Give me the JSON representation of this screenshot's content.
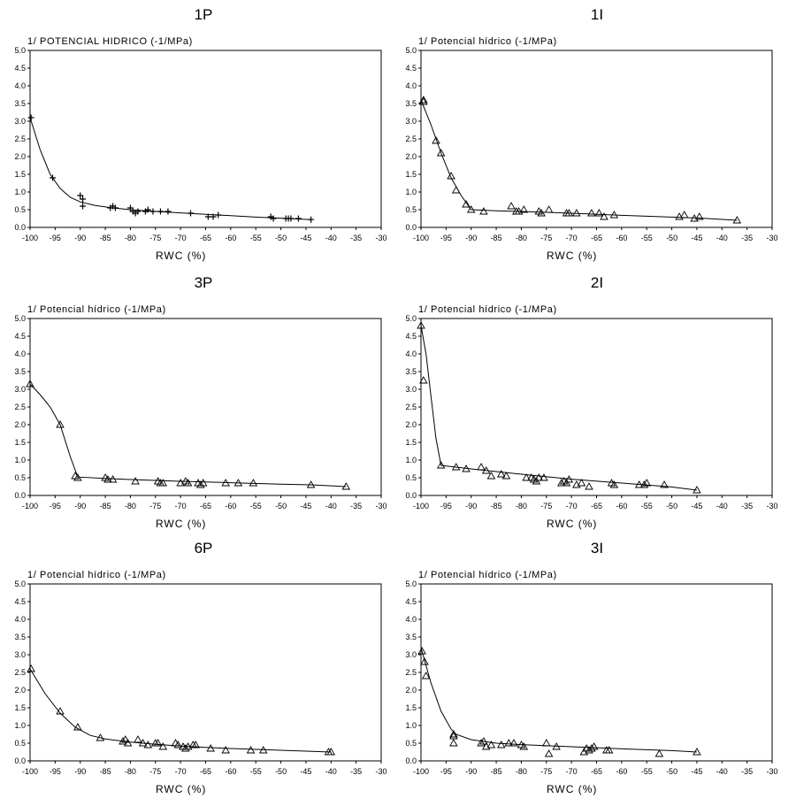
{
  "figure": {
    "marker_color": "#000000",
    "frame_color": "#000000"
  },
  "chart_data": [
    {
      "type": "scatter",
      "title": "1P",
      "ylabel": "1/ POTENCIAL HIDRICO (-1/MPa)",
      "xlabel": "RWC (%)",
      "xlim": [
        -100,
        -30
      ],
      "ylim": [
        0,
        5
      ],
      "xticks": [
        "-100",
        "-95",
        "-90",
        "-85",
        "-80",
        "-75",
        "-70",
        "-65",
        "-60",
        "-55",
        "-50",
        "-45",
        "-40",
        "-35",
        "-30"
      ],
      "yticks": [
        "0.0",
        "0.5",
        "1.0",
        "1.5",
        "2.0",
        "2.5",
        "3.0",
        "3.5",
        "4.0",
        "4.5",
        "5.0"
      ],
      "marker": "plus",
      "grid": false,
      "points": [
        [
          -99.8,
          3.1
        ],
        [
          -95.5,
          1.4
        ],
        [
          -90,
          0.9
        ],
        [
          -89.5,
          0.8
        ],
        [
          -89.5,
          0.6
        ],
        [
          -84,
          0.55
        ],
        [
          -83.5,
          0.6
        ],
        [
          -83,
          0.55
        ],
        [
          -80,
          0.55
        ],
        [
          -79.5,
          0.45
        ],
        [
          -79,
          0.4
        ],
        [
          -78.5,
          0.45
        ],
        [
          -77,
          0.45
        ],
        [
          -76.5,
          0.5
        ],
        [
          -75.5,
          0.45
        ],
        [
          -74,
          0.45
        ],
        [
          -72.5,
          0.45
        ],
        [
          -68,
          0.4
        ],
        [
          -64.5,
          0.3
        ],
        [
          -63.5,
          0.3
        ],
        [
          -62.5,
          0.35
        ],
        [
          -52,
          0.3
        ],
        [
          -51.5,
          0.25
        ],
        [
          -49,
          0.25
        ],
        [
          -48.5,
          0.25
        ],
        [
          -48,
          0.25
        ],
        [
          -46.5,
          0.25
        ],
        [
          -44,
          0.22
        ]
      ],
      "curve": [
        [
          -100,
          3.1
        ],
        [
          -98,
          2.2
        ],
        [
          -96,
          1.5
        ],
        [
          -94,
          1.1
        ],
        [
          -92,
          0.85
        ],
        [
          -90,
          0.72
        ],
        [
          -87,
          0.62
        ],
        [
          -84,
          0.56
        ],
        [
          -80,
          0.5
        ],
        [
          -75,
          0.45
        ],
        [
          -70,
          0.41
        ],
        [
          -65,
          0.37
        ],
        [
          -60,
          0.33
        ],
        [
          -55,
          0.29
        ],
        [
          -50,
          0.26
        ],
        [
          -44,
          0.22
        ]
      ]
    },
    {
      "type": "scatter",
      "title": "1I",
      "ylabel": "1/ Potencial hídrico (-1/MPa)",
      "xlabel": "RWC (%)",
      "xlim": [
        -100,
        -30
      ],
      "ylim": [
        0,
        5
      ],
      "xticks": [
        "-100",
        "-95",
        "-90",
        "-85",
        "-80",
        "-75",
        "-70",
        "-65",
        "-60",
        "-55",
        "-50",
        "-45",
        "-40",
        "-35",
        "-30"
      ],
      "yticks": [
        "0.0",
        "0.5",
        "1.0",
        "1.5",
        "2.0",
        "2.5",
        "3.0",
        "3.5",
        "4.0",
        "4.5",
        "5.0"
      ],
      "marker": "triangle",
      "grid": false,
      "points": [
        [
          -99.5,
          3.6
        ],
        [
          -99.5,
          3.55
        ],
        [
          -97,
          2.45
        ],
        [
          -96,
          2.1
        ],
        [
          -94,
          1.45
        ],
        [
          -93,
          1.05
        ],
        [
          -91,
          0.65
        ],
        [
          -90,
          0.5
        ],
        [
          -87.5,
          0.45
        ],
        [
          -82,
          0.6
        ],
        [
          -81,
          0.45
        ],
        [
          -80.5,
          0.45
        ],
        [
          -79.5,
          0.5
        ],
        [
          -76.5,
          0.45
        ],
        [
          -76,
          0.4
        ],
        [
          -74.5,
          0.5
        ],
        [
          -71,
          0.4
        ],
        [
          -70.5,
          0.4
        ],
        [
          -69,
          0.4
        ],
        [
          -66,
          0.4
        ],
        [
          -64.5,
          0.4
        ],
        [
          -63.5,
          0.3
        ],
        [
          -61.5,
          0.35
        ],
        [
          -48.5,
          0.3
        ],
        [
          -47.5,
          0.35
        ],
        [
          -45.5,
          0.25
        ],
        [
          -44.5,
          0.3
        ],
        [
          -37,
          0.2
        ]
      ],
      "curve": [
        [
          -100,
          3.6
        ],
        [
          -98,
          2.9
        ],
        [
          -96,
          2.1
        ],
        [
          -94,
          1.4
        ],
        [
          -92,
          0.9
        ],
        [
          -90,
          0.5
        ],
        [
          -85,
          0.47
        ],
        [
          -80,
          0.45
        ],
        [
          -70,
          0.4
        ],
        [
          -60,
          0.34
        ],
        [
          -50,
          0.29
        ],
        [
          -44,
          0.26
        ],
        [
          -37,
          0.2
        ]
      ]
    },
    {
      "type": "scatter",
      "title": "3P",
      "ylabel": "1/ Potencial hídrico (-1/MPa)",
      "xlabel": "RWC (%)",
      "xlim": [
        -100,
        -30
      ],
      "ylim": [
        0,
        5
      ],
      "xticks": [
        "-100",
        "-95",
        "-90",
        "-85",
        "-80",
        "-75",
        "-70",
        "-65",
        "-60",
        "-55",
        "-50",
        "-45",
        "-40",
        "-35",
        "-30"
      ],
      "yticks": [
        "0.0",
        "0.5",
        "1.0",
        "1.5",
        "2.0",
        "2.5",
        "3.0",
        "3.5",
        "4.0",
        "4.5",
        "5.0"
      ],
      "marker": "triangle",
      "grid": false,
      "points": [
        [
          -100,
          3.15
        ],
        [
          -94,
          2.0
        ],
        [
          -91,
          0.55
        ],
        [
          -90.5,
          0.5
        ],
        [
          -85,
          0.5
        ],
        [
          -84.5,
          0.45
        ],
        [
          -83.5,
          0.45
        ],
        [
          -79,
          0.4
        ],
        [
          -74.5,
          0.4
        ],
        [
          -74,
          0.35
        ],
        [
          -73.5,
          0.35
        ],
        [
          -70,
          0.35
        ],
        [
          -69,
          0.4
        ],
        [
          -68.5,
          0.35
        ],
        [
          -66.5,
          0.35
        ],
        [
          -66,
          0.3
        ],
        [
          -65.5,
          0.35
        ],
        [
          -61,
          0.35
        ],
        [
          -58.5,
          0.35
        ],
        [
          -55.5,
          0.35
        ],
        [
          -44,
          0.3
        ],
        [
          -37,
          0.25
        ]
      ],
      "curve": [
        [
          -100,
          3.15
        ],
        [
          -98,
          2.85
        ],
        [
          -96,
          2.5
        ],
        [
          -94,
          2.0
        ],
        [
          -92,
          1.1
        ],
        [
          -90.5,
          0.52
        ],
        [
          -85,
          0.48
        ],
        [
          -80,
          0.45
        ],
        [
          -70,
          0.4
        ],
        [
          -60,
          0.36
        ],
        [
          -50,
          0.32
        ],
        [
          -44,
          0.3
        ],
        [
          -37,
          0.25
        ]
      ]
    },
    {
      "type": "scatter",
      "title": "2I",
      "ylabel": "1/ Potencial hídrico (-1/MPa)",
      "xlabel": "RWC (%)",
      "xlim": [
        -100,
        -30
      ],
      "ylim": [
        0,
        5
      ],
      "xticks": [
        "-100",
        "-95",
        "-90",
        "-85",
        "-80",
        "-75",
        "-70",
        "-65",
        "-60",
        "-55",
        "-50",
        "-45",
        "-40",
        "-35",
        "-30"
      ],
      "yticks": [
        "0.0",
        "0.5",
        "1.0",
        "1.5",
        "2.0",
        "2.5",
        "3.0",
        "3.5",
        "4.0",
        "4.5",
        "5.0"
      ],
      "marker": "triangle",
      "grid": false,
      "points": [
        [
          -100,
          4.8
        ],
        [
          -99.5,
          3.25
        ],
        [
          -96,
          0.85
        ],
        [
          -93,
          0.8
        ],
        [
          -91,
          0.75
        ],
        [
          -88,
          0.8
        ],
        [
          -87,
          0.7
        ],
        [
          -86,
          0.55
        ],
        [
          -84,
          0.6
        ],
        [
          -83,
          0.55
        ],
        [
          -79,
          0.5
        ],
        [
          -78,
          0.5
        ],
        [
          -77.5,
          0.45
        ],
        [
          -77,
          0.4
        ],
        [
          -76.5,
          0.5
        ],
        [
          -75.5,
          0.5
        ],
        [
          -72,
          0.35
        ],
        [
          -71.5,
          0.4
        ],
        [
          -71,
          0.35
        ],
        [
          -70.5,
          0.45
        ],
        [
          -69,
          0.3
        ],
        [
          -68,
          0.35
        ],
        [
          -66.5,
          0.25
        ],
        [
          -62,
          0.35
        ],
        [
          -61.5,
          0.3
        ],
        [
          -56.5,
          0.3
        ],
        [
          -55.5,
          0.3
        ],
        [
          -55,
          0.35
        ],
        [
          -51.5,
          0.3
        ],
        [
          -45,
          0.15
        ]
      ],
      "curve": [
        [
          -100,
          4.8
        ],
        [
          -99,
          4.0
        ],
        [
          -98,
          2.8
        ],
        [
          -97,
          1.6
        ],
        [
          -96,
          0.85
        ],
        [
          -90,
          0.75
        ],
        [
          -80,
          0.6
        ],
        [
          -70,
          0.46
        ],
        [
          -60,
          0.35
        ],
        [
          -50,
          0.24
        ],
        [
          -45,
          0.15
        ]
      ]
    },
    {
      "type": "scatter",
      "title": "6P",
      "ylabel": "1/ Potencial hídrico (-1/MPa)",
      "xlabel": "RWC (%)",
      "xlim": [
        -100,
        -30
      ],
      "ylim": [
        0,
        5
      ],
      "xticks": [
        "-100",
        "-95",
        "-90",
        "-85",
        "-80",
        "-75",
        "-70",
        "-65",
        "-60",
        "-55",
        "-50",
        "-45",
        "-40",
        "-35",
        "-30"
      ],
      "yticks": [
        "0.0",
        "0.5",
        "1.0",
        "1.5",
        "2.0",
        "2.5",
        "3.0",
        "3.5",
        "4.0",
        "4.5",
        "5.0"
      ],
      "marker": "triangle",
      "grid": false,
      "points": [
        [
          -99.8,
          2.6
        ],
        [
          -94,
          1.4
        ],
        [
          -90.5,
          0.95
        ],
        [
          -86,
          0.65
        ],
        [
          -81.5,
          0.55
        ],
        [
          -81,
          0.6
        ],
        [
          -80.5,
          0.5
        ],
        [
          -78.5,
          0.6
        ],
        [
          -77.5,
          0.5
        ],
        [
          -76.5,
          0.45
        ],
        [
          -75,
          0.5
        ],
        [
          -74.5,
          0.5
        ],
        [
          -73.5,
          0.4
        ],
        [
          -71,
          0.5
        ],
        [
          -70.5,
          0.45
        ],
        [
          -69.5,
          0.4
        ],
        [
          -69,
          0.35
        ],
        [
          -68.5,
          0.4
        ],
        [
          -67.5,
          0.45
        ],
        [
          -67,
          0.45
        ],
        [
          -64,
          0.35
        ],
        [
          -61,
          0.3
        ],
        [
          -56,
          0.3
        ],
        [
          -53.5,
          0.3
        ],
        [
          -40.5,
          0.25
        ],
        [
          -40,
          0.25
        ]
      ],
      "curve": [
        [
          -100,
          2.6
        ],
        [
          -97,
          1.9
        ],
        [
          -94,
          1.35
        ],
        [
          -91,
          0.95
        ],
        [
          -88,
          0.72
        ],
        [
          -85,
          0.62
        ],
        [
          -80,
          0.53
        ],
        [
          -75,
          0.47
        ],
        [
          -70,
          0.42
        ],
        [
          -65,
          0.38
        ],
        [
          -60,
          0.35
        ],
        [
          -50,
          0.3
        ],
        [
          -40,
          0.25
        ]
      ]
    },
    {
      "type": "scatter",
      "title": "3I",
      "ylabel": "1/ Potencial hídrico (-1/MPa)",
      "xlabel": "RWC (%)",
      "xlim": [
        -100,
        -30
      ],
      "ylim": [
        0,
        5
      ],
      "xticks": [
        "-100",
        "-95",
        "-90",
        "-85",
        "-80",
        "-75",
        "-70",
        "-65",
        "-60",
        "-55",
        "-50",
        "-45",
        "-40",
        "-35",
        "-30"
      ],
      "yticks": [
        "0.0",
        "0.5",
        "1.0",
        "1.5",
        "2.0",
        "2.5",
        "3.0",
        "3.5",
        "4.0",
        "4.5",
        "5.0"
      ],
      "marker": "triangle",
      "grid": false,
      "points": [
        [
          -99.8,
          3.1
        ],
        [
          -99.3,
          2.8
        ],
        [
          -99,
          2.4
        ],
        [
          -93.5,
          0.75
        ],
        [
          -93.5,
          0.7
        ],
        [
          -93.5,
          0.5
        ],
        [
          -88,
          0.5
        ],
        [
          -87.5,
          0.55
        ],
        [
          -87,
          0.4
        ],
        [
          -86,
          0.45
        ],
        [
          -84,
          0.45
        ],
        [
          -82.5,
          0.5
        ],
        [
          -81.5,
          0.5
        ],
        [
          -80,
          0.45
        ],
        [
          -79.5,
          0.4
        ],
        [
          -75,
          0.5
        ],
        [
          -74.5,
          0.2
        ],
        [
          -73,
          0.4
        ],
        [
          -67.5,
          0.25
        ],
        [
          -67,
          0.35
        ],
        [
          -66.5,
          0.3
        ],
        [
          -66,
          0.35
        ],
        [
          -65.5,
          0.4
        ],
        [
          -63,
          0.3
        ],
        [
          -62.5,
          0.3
        ],
        [
          -52.5,
          0.2
        ],
        [
          -45,
          0.25
        ]
      ],
      "curve": [
        [
          -100,
          3.2
        ],
        [
          -98,
          2.2
        ],
        [
          -96,
          1.4
        ],
        [
          -94,
          0.9
        ],
        [
          -93,
          0.75
        ],
        [
          -90,
          0.6
        ],
        [
          -85,
          0.5
        ],
        [
          -80,
          0.46
        ],
        [
          -70,
          0.4
        ],
        [
          -60,
          0.34
        ],
        [
          -50,
          0.29
        ],
        [
          -45,
          0.25
        ]
      ]
    }
  ]
}
